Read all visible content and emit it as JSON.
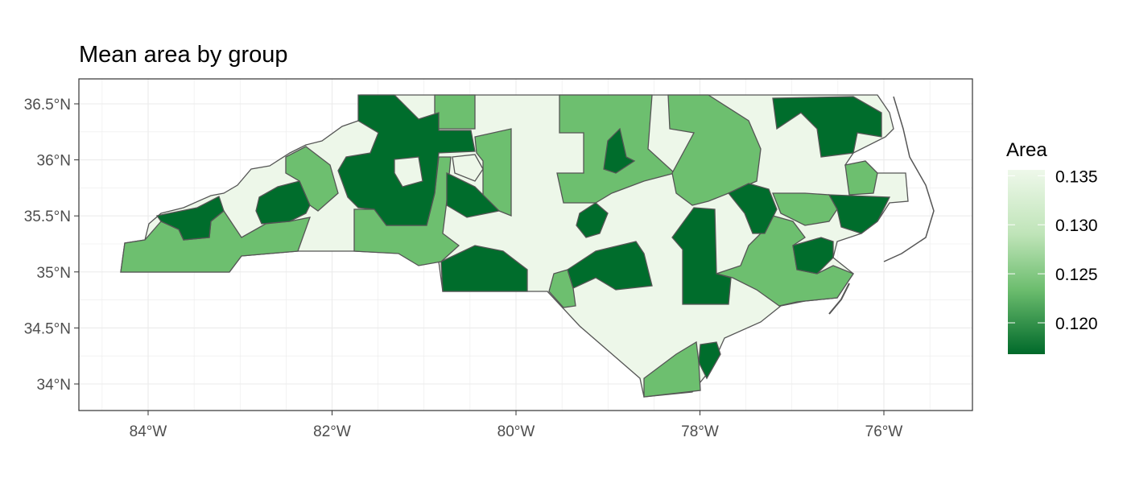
{
  "chart_data": {
    "type": "map",
    "title": "Mean area by group",
    "x_ticks": [
      "84°W",
      "82°W",
      "80°W",
      "78°W",
      "76°W"
    ],
    "x_tick_values": [
      -84,
      -82,
      -80,
      -78,
      -76
    ],
    "y_ticks": [
      "34°N",
      "34.5°N",
      "35°N",
      "35.5°N",
      "36°N",
      "36.5°N"
    ],
    "y_tick_values": [
      34,
      34.5,
      35,
      35.5,
      36,
      36.5
    ],
    "xlim": [
      -84.8,
      -75.2
    ],
    "ylim": [
      33.8,
      36.75
    ],
    "grid": true,
    "legend": {
      "title": "Area",
      "position": "right",
      "ticks": [
        "0.135",
        "0.130",
        "0.125",
        "0.120"
      ],
      "tick_values": [
        0.135,
        0.13,
        0.125,
        0.12
      ],
      "range": [
        0.1168,
        0.1356
      ],
      "low_color": "#00692a",
      "high_color": "#eef8ea"
    },
    "group_values": [
      0.1168,
      0.125,
      0.1356
    ],
    "group_colors": [
      "#006d2c",
      "#6dbf6f",
      "#edf7e9"
    ],
    "border_color": "#555555"
  }
}
